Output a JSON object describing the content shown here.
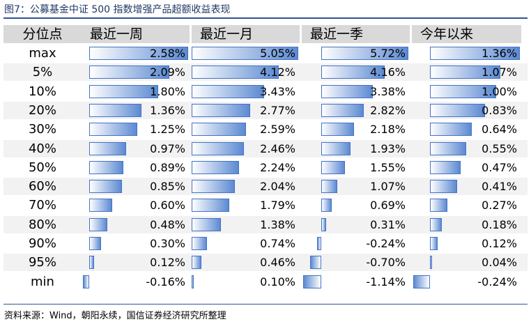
{
  "title": "图7：公募基金中证 500 指数增强产品超额收益表现",
  "source": "资料来源：Wind，朝阳永续，国信证券经济研究所整理",
  "colors": {
    "bar": "#5c8ad2",
    "bar_border": "#4472c4",
    "header_bg": "#d9d9d9",
    "row_alt_bg": "#f2f2f2",
    "rule": "#2f5496"
  },
  "chart_data": {
    "type": "table",
    "subtype": "data-bar table",
    "columns": [
      "分位点",
      "最近一周",
      "最近一月",
      "最近一季",
      "今年以来"
    ],
    "rows": [
      {
        "label": "max",
        "values": [
          "2.58%",
          "5.05%",
          "5.72%",
          "1.36%"
        ]
      },
      {
        "label": "5%",
        "values": [
          "2.09%",
          "4.12%",
          "4.16%",
          "1.07%"
        ]
      },
      {
        "label": "10%",
        "values": [
          "1.80%",
          "3.43%",
          "3.38%",
          "1.00%"
        ]
      },
      {
        "label": "20%",
        "values": [
          "1.36%",
          "2.77%",
          "2.82%",
          "0.83%"
        ]
      },
      {
        "label": "30%",
        "values": [
          "1.25%",
          "2.59%",
          "2.18%",
          "0.64%"
        ]
      },
      {
        "label": "40%",
        "values": [
          "0.97%",
          "2.46%",
          "1.93%",
          "0.55%"
        ]
      },
      {
        "label": "50%",
        "values": [
          "0.89%",
          "2.24%",
          "1.55%",
          "0.47%"
        ]
      },
      {
        "label": "60%",
        "values": [
          "0.85%",
          "2.04%",
          "1.07%",
          "0.41%"
        ]
      },
      {
        "label": "70%",
        "values": [
          "0.60%",
          "1.79%",
          "0.69%",
          "0.27%"
        ]
      },
      {
        "label": "80%",
        "values": [
          "0.48%",
          "1.38%",
          "0.31%",
          "0.18%"
        ]
      },
      {
        "label": "90%",
        "values": [
          "0.30%",
          "0.74%",
          "-0.24%",
          "0.12%"
        ]
      },
      {
        "label": "95%",
        "values": [
          "0.12%",
          "0.46%",
          "-0.70%",
          "0.04%"
        ]
      },
      {
        "label": "min",
        "values": [
          "-0.16%",
          "0.10%",
          "-1.14%",
          "-0.24%"
        ]
      }
    ],
    "series_ranges": [
      {
        "min": -0.16,
        "max": 2.58
      },
      {
        "min": 0.1,
        "max": 5.05
      },
      {
        "min": -1.14,
        "max": 5.72
      },
      {
        "min": -0.24,
        "max": 1.36
      }
    ]
  }
}
